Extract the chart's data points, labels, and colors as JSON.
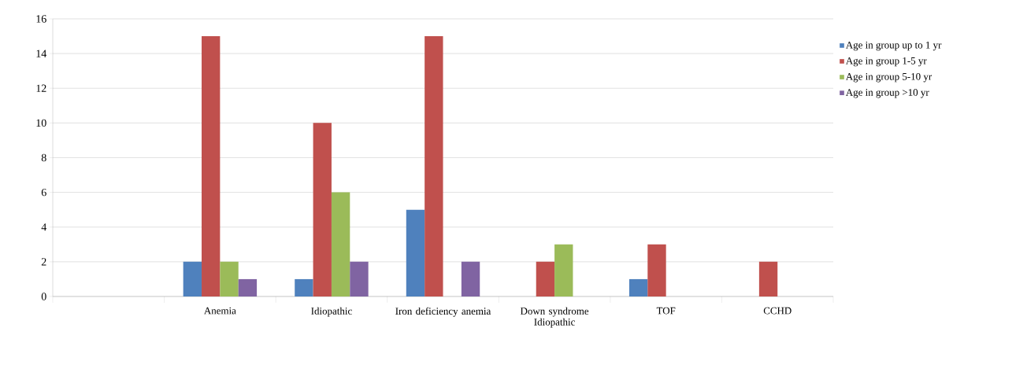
{
  "chart_data": {
    "type": "bar",
    "categories": [
      null,
      "Anemia",
      "Idiopathic",
      "Iron deficiency anemia",
      "Down syndrome Idiopathic",
      "TOF",
      "CCHD"
    ],
    "series": [
      {
        "name": "Age in group up to 1 yr",
        "color": "#4f81bd",
        "values": [
          null,
          2,
          1,
          5,
          null,
          1,
          null
        ]
      },
      {
        "name": "Age in group 1-5 yr",
        "color": "#c0504d",
        "values": [
          null,
          15,
          10,
          15,
          2,
          3,
          2
        ]
      },
      {
        "name": "Age in group 5-10 yr",
        "color": "#9bbb59",
        "values": [
          null,
          2,
          6,
          null,
          3,
          null,
          null
        ]
      },
      {
        "name": "Age in group >10 yr",
        "color": "#8064a2",
        "values": [
          null,
          1,
          2,
          2,
          null,
          null,
          null
        ]
      }
    ],
    "ylim": [
      0,
      16
    ],
    "yticks": [
      0,
      2,
      4,
      6,
      8,
      10,
      12,
      14,
      16
    ],
    "grid": "y",
    "legend": "right"
  }
}
